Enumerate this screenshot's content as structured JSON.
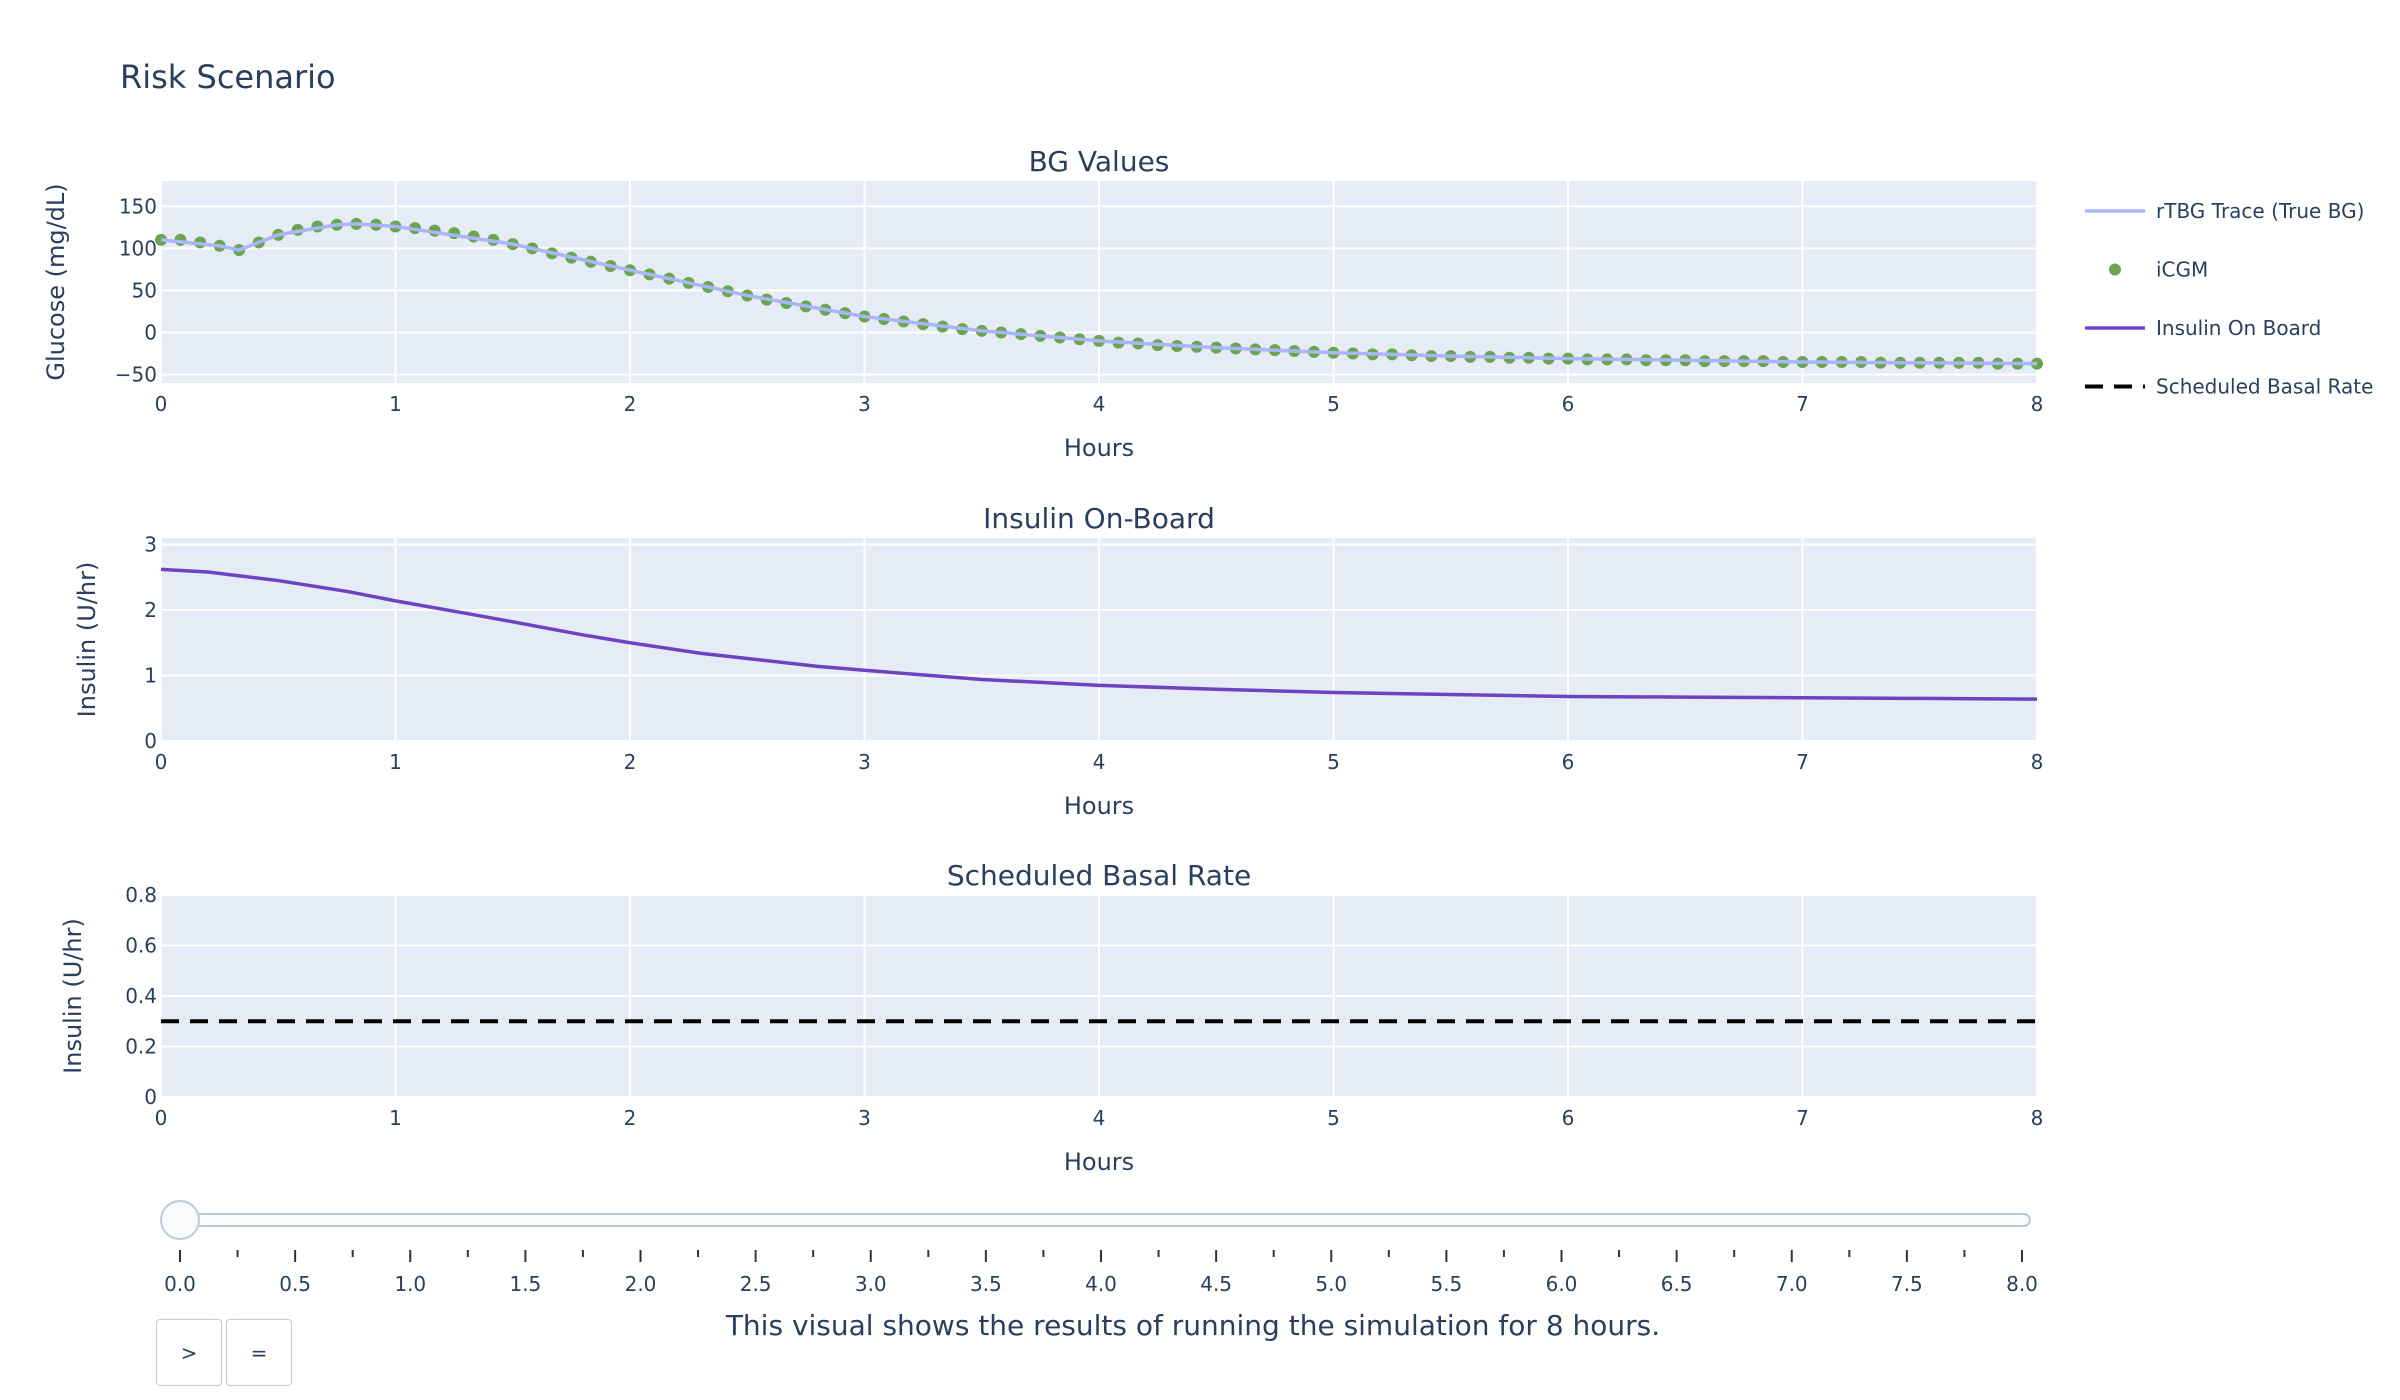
{
  "page_title": "Risk Scenario",
  "caption": "This visual shows the results of running the simulation for 8 hours.",
  "buttons": {
    "play_label": ">",
    "pause_label": "="
  },
  "colors": {
    "plot_bg": "#e5ecf6",
    "grid": "#ffffff",
    "text": "#2a3f5f",
    "rtbg": "#aab6fb",
    "icgm": "#6ca54f",
    "iob": "#6f42c1",
    "basal": "#000000",
    "slider_track": "#f8fafc",
    "slider_border": "#bec8d9"
  },
  "legend": {
    "placement": "right",
    "items": [
      {
        "label": "rTBG Trace (True BG)",
        "kind": "line",
        "color": "#aab6fb"
      },
      {
        "label": " iCGM",
        "kind": "marker",
        "color": "#6ca54f"
      },
      {
        "label": "Insulin On Board",
        "kind": "line",
        "color": "#6f42c1"
      },
      {
        "label": "Scheduled Basal Rate",
        "kind": "dash",
        "color": "#000000"
      }
    ]
  },
  "slider": {
    "value": 0.0,
    "min": 0,
    "max": 8,
    "tick_labels": [
      "0.0",
      "0.5",
      "1.0",
      "1.5",
      "2.0",
      "2.5",
      "3.0",
      "3.5",
      "4.0",
      "4.5",
      "5.0",
      "5.5",
      "6.0",
      "6.5",
      "7.0",
      "7.5",
      "8.0"
    ]
  },
  "chart_data": [
    {
      "type": "scatter",
      "title": "BG Values",
      "xlabel": "Hours",
      "ylabel": "Glucose (mg/dL)",
      "xlim": [
        0,
        8
      ],
      "ylim": [
        -60,
        180
      ],
      "xticks": [
        "0",
        "1",
        "2",
        "3",
        "4",
        "5",
        "6",
        "7",
        "8"
      ],
      "yticks": [
        {
          "v": -50,
          "t": "−50"
        },
        {
          "v": 0,
          "t": "0"
        },
        {
          "v": 50,
          "t": "50"
        },
        {
          "v": 100,
          "t": "100"
        },
        {
          "v": 150,
          "t": "150"
        }
      ],
      "grid": true,
      "series": [
        {
          "name": " iCGM",
          "mode": "markers",
          "x": [
            0,
            0.083,
            0.167,
            0.25,
            0.333,
            0.417,
            0.5,
            0.583,
            0.667,
            0.75,
            0.833,
            0.917,
            1.0,
            1.083,
            1.167,
            1.25,
            1.333,
            1.417,
            1.5,
            1.583,
            1.667,
            1.75,
            1.833,
            1.917,
            2.0,
            2.083,
            2.167,
            2.25,
            2.333,
            2.417,
            2.5,
            2.583,
            2.667,
            2.75,
            2.833,
            2.917,
            3.0,
            3.083,
            3.167,
            3.25,
            3.333,
            3.417,
            3.5,
            3.583,
            3.667,
            3.75,
            3.833,
            3.917,
            4.0,
            4.083,
            4.167,
            4.25,
            4.333,
            4.417,
            4.5,
            4.583,
            4.667,
            4.75,
            4.833,
            4.917,
            5.0,
            5.083,
            5.167,
            5.25,
            5.333,
            5.417,
            5.5,
            5.583,
            5.667,
            5.75,
            5.833,
            5.917,
            6.0,
            6.083,
            6.167,
            6.25,
            6.333,
            6.417,
            6.5,
            6.583,
            6.667,
            6.75,
            6.833,
            6.917,
            7.0,
            7.083,
            7.167,
            7.25,
            7.333,
            7.417,
            7.5,
            7.583,
            7.667,
            7.75,
            7.833,
            7.917,
            8.0
          ],
          "y": [
            110,
            110,
            107,
            103,
            98,
            107,
            116,
            122,
            126,
            128,
            129,
            128,
            126,
            124,
            121,
            118,
            114,
            110,
            105,
            100,
            94,
            89,
            84,
            79,
            74,
            69,
            64,
            59,
            54,
            49,
            44,
            39,
            35,
            31,
            27,
            23,
            19,
            16,
            13,
            10,
            7,
            4,
            2,
            0,
            -2,
            -4,
            -6,
            -8,
            -10,
            -12,
            -13,
            -15,
            -16,
            -17,
            -18,
            -19,
            -20,
            -21,
            -22,
            -23,
            -24,
            -25,
            -26,
            -26,
            -27,
            -28,
            -28,
            -29,
            -29,
            -30,
            -30,
            -31,
            -31,
            -32,
            -32,
            -32,
            -33,
            -33,
            -33,
            -34,
            -34,
            -34,
            -34,
            -35,
            -35,
            -35,
            -35,
            -35,
            -36,
            -36,
            -36,
            -36,
            -36,
            -36,
            -37,
            -37,
            -37
          ]
        },
        {
          "name": "rTBG Trace (True BG)",
          "mode": "lines",
          "x": [
            0,
            0.25,
            0.333,
            0.5,
            0.75,
            0.833,
            1.0,
            1.5,
            2.0,
            2.5,
            3.0,
            3.5,
            4.0,
            4.5,
            5.0,
            5.5,
            6.0,
            6.5,
            7.0,
            7.5,
            8.0
          ],
          "y": [
            110,
            103,
            98,
            116,
            128,
            129,
            126,
            105,
            74,
            44,
            19,
            2,
            -10,
            -18,
            -24,
            -28,
            -31,
            -33,
            -35,
            -36,
            -37
          ]
        }
      ]
    },
    {
      "type": "line",
      "title": "Insulin On-Board",
      "xlabel": "Hours",
      "ylabel": "Insulin (U/hr)",
      "xlim": [
        0,
        8
      ],
      "ylim": [
        0,
        3.1
      ],
      "xticks": [
        "0",
        "1",
        "2",
        "3",
        "4",
        "5",
        "6",
        "7",
        "8"
      ],
      "yticks": [
        {
          "v": 0,
          "t": "0"
        },
        {
          "v": 1,
          "t": "1"
        },
        {
          "v": 2,
          "t": "2"
        },
        {
          "v": 3,
          "t": "3"
        }
      ],
      "grid": true,
      "series": [
        {
          "name": "Insulin On Board",
          "x": [
            0,
            0.2,
            0.5,
            0.8,
            1.0,
            1.3,
            1.5,
            1.8,
            2.0,
            2.3,
            2.5,
            2.8,
            3.0,
            3.5,
            4.0,
            4.5,
            5.0,
            5.5,
            6.0,
            6.5,
            7.0,
            7.5,
            8.0
          ],
          "y": [
            2.62,
            2.58,
            2.45,
            2.28,
            2.14,
            1.95,
            1.82,
            1.62,
            1.5,
            1.34,
            1.26,
            1.14,
            1.08,
            0.94,
            0.85,
            0.79,
            0.74,
            0.71,
            0.68,
            0.67,
            0.66,
            0.65,
            0.64
          ]
        }
      ]
    },
    {
      "type": "line",
      "title": "Scheduled Basal Rate",
      "xlabel": "Hours",
      "ylabel": "Insulin (U/hr)",
      "xlim": [
        0,
        8
      ],
      "ylim": [
        0,
        0.8
      ],
      "xticks": [
        "0",
        "1",
        "2",
        "3",
        "4",
        "5",
        "6",
        "7",
        "8"
      ],
      "yticks": [
        {
          "v": 0,
          "t": "0"
        },
        {
          "v": 0.2,
          "t": "0.2"
        },
        {
          "v": 0.4,
          "t": "0.4"
        },
        {
          "v": 0.6,
          "t": "0.6"
        },
        {
          "v": 0.8,
          "t": "0.8"
        }
      ],
      "grid": true,
      "series": [
        {
          "name": "Scheduled Basal Rate",
          "dash": true,
          "x": [
            0,
            8
          ],
          "y": [
            0.3,
            0.3
          ]
        }
      ]
    }
  ]
}
